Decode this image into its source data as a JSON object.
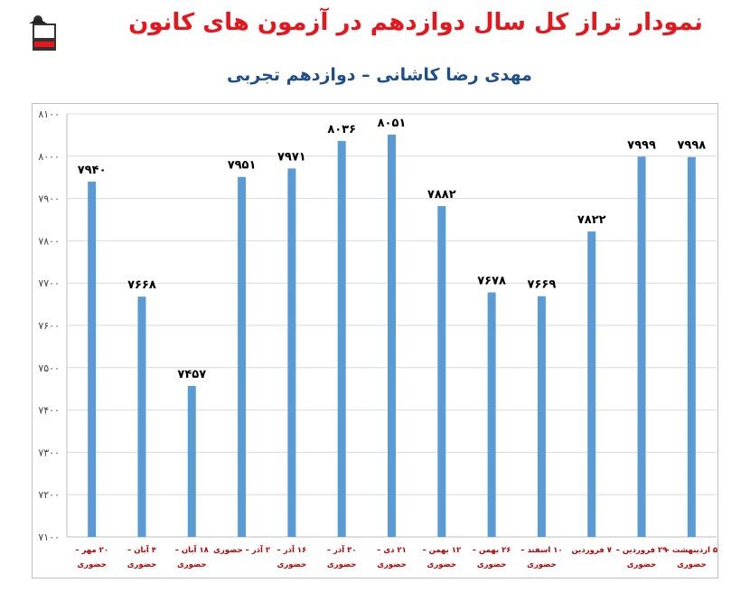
{
  "header": {
    "title": "نمودار تراز کل سال دوازدهم در آزمون های کانون",
    "subtitle": "مهدی رضا کاشانی – دوازدهم تجربی"
  },
  "colors": {
    "bar": "#5b9bd5",
    "title": "#e8161c",
    "subtitle": "#1f4e8c",
    "axis_label": "#c00000",
    "grid": "#d9d9d9"
  },
  "chart_data": {
    "type": "bar",
    "categories": [
      [
        "۲۰ مهر –",
        "حضوری"
      ],
      [
        "۴ آبان –",
        "حضوری"
      ],
      [
        "۱۸ آبان –",
        "حضوری"
      ],
      [
        "۲ آذر – حضوری",
        ""
      ],
      [
        "۱۶ آذر –",
        "حضوری"
      ],
      [
        "۳۰ آذر –",
        "حضوری"
      ],
      [
        "۲۱ دی –",
        "حضوری"
      ],
      [
        "۱۲ بهمن –",
        "حضوری"
      ],
      [
        "۲۶ بهمن –",
        "حضوری"
      ],
      [
        "۱۰ اسفند –",
        "حضوری"
      ],
      [
        "۷ فروردین",
        ""
      ],
      [
        "۲۹ فروردین –",
        "حضوری"
      ],
      [
        "۵ اردیبهشت –",
        "حضوری"
      ]
    ],
    "values": [
      7940,
      7668,
      7457,
      7951,
      7971,
      8036,
      8051,
      7882,
      7678,
      7669,
      7822,
      7999,
      7998
    ],
    "value_labels": [
      "۷۹۴۰",
      "۷۶۶۸",
      "۷۴۵۷",
      "۷۹۵۱",
      "۷۹۷۱",
      "۸۰۳۶",
      "۸۰۵۱",
      "۷۸۸۲",
      "۷۶۷۸",
      "۷۶۶۹",
      "۷۸۲۲",
      "۷۹۹۹",
      "۷۹۹۸"
    ],
    "ylim": [
      7100,
      8100
    ],
    "yticks": [
      7100,
      7200,
      7300,
      7400,
      7500,
      7600,
      7700,
      7800,
      7900,
      8000,
      8100
    ],
    "ytick_labels": [
      "۷۱۰۰",
      "۷۲۰۰",
      "۷۳۰۰",
      "۷۴۰۰",
      "۷۵۰۰",
      "۷۶۰۰",
      "۷۷۰۰",
      "۷۸۰۰",
      "۷۹۰۰",
      "۸۰۰۰",
      "۸۱۰۰"
    ],
    "grid": true,
    "legend": "none"
  }
}
